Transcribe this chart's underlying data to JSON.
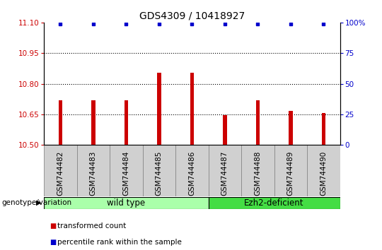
{
  "title": "GDS4309 / 10418927",
  "samples": [
    "GSM744482",
    "GSM744483",
    "GSM744484",
    "GSM744485",
    "GSM744486",
    "GSM744487",
    "GSM744488",
    "GSM744489",
    "GSM744490"
  ],
  "bar_values": [
    10.72,
    10.72,
    10.72,
    10.855,
    10.855,
    10.645,
    10.72,
    10.668,
    10.658
  ],
  "percentile_values": [
    99,
    99,
    99,
    99,
    99,
    99,
    99,
    99,
    99
  ],
  "bar_color": "#cc0000",
  "percentile_color": "#0000cc",
  "ylim_left": [
    10.5,
    11.1
  ],
  "ylim_right": [
    0,
    100
  ],
  "yticks_left": [
    10.5,
    10.65,
    10.8,
    10.95,
    11.1
  ],
  "yticks_right": [
    0,
    25,
    50,
    75,
    100
  ],
  "ytick_labels_right": [
    "0",
    "25",
    "50",
    "75",
    "100%"
  ],
  "grid_lines": [
    10.65,
    10.8,
    10.95
  ],
  "groups": [
    {
      "label": "wild type",
      "start": 0,
      "end": 4,
      "color": "#aaffaa"
    },
    {
      "label": "Ezh2-deficient",
      "start": 5,
      "end": 8,
      "color": "#44dd44"
    }
  ],
  "group_label": "genotype/variation",
  "legend_bar_label": "transformed count",
  "legend_pct_label": "percentile rank within the sample",
  "title_fontsize": 10,
  "tick_fontsize": 7.5,
  "label_fontsize": 8.5
}
